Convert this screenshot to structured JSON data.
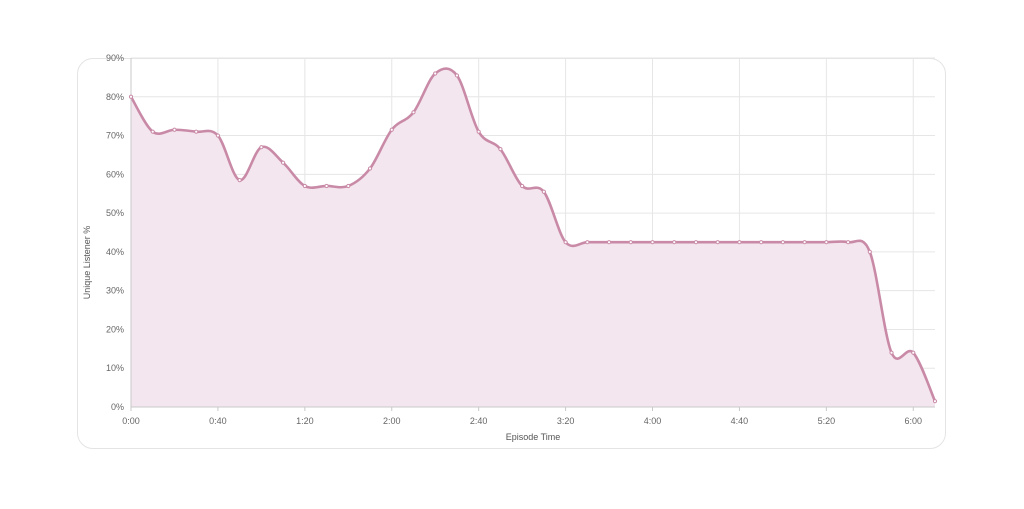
{
  "chart_data": {
    "type": "area",
    "title": "",
    "xlabel": "Episode Time",
    "ylabel": "Unique Listener %",
    "x_unit": "seconds",
    "xlim": [
      0,
      370
    ],
    "ylim": [
      0,
      90
    ],
    "x_ticks": [
      {
        "value": 0,
        "label": "0:00"
      },
      {
        "value": 40,
        "label": "0:40"
      },
      {
        "value": 80,
        "label": "1:20"
      },
      {
        "value": 120,
        "label": "2:00"
      },
      {
        "value": 160,
        "label": "2:40"
      },
      {
        "value": 200,
        "label": "3:20"
      },
      {
        "value": 240,
        "label": "4:00"
      },
      {
        "value": 280,
        "label": "4:40"
      },
      {
        "value": 320,
        "label": "5:20"
      },
      {
        "value": 360,
        "label": "6:00"
      }
    ],
    "y_ticks": [
      {
        "value": 0,
        "label": "0%"
      },
      {
        "value": 10,
        "label": "10%"
      },
      {
        "value": 20,
        "label": "20%"
      },
      {
        "value": 30,
        "label": "30%"
      },
      {
        "value": 40,
        "label": "40%"
      },
      {
        "value": 50,
        "label": "50%"
      },
      {
        "value": 60,
        "label": "60%"
      },
      {
        "value": 70,
        "label": "70%"
      },
      {
        "value": 80,
        "label": "80%"
      },
      {
        "value": 90,
        "label": "90%"
      }
    ],
    "grid": true,
    "legend": "none",
    "colors": {
      "line": "#c98aa7",
      "fill": "#f4e6ee",
      "point": "#c98aa7"
    },
    "series": [
      {
        "x": [
          0,
          10,
          20,
          30,
          40,
          50,
          60,
          70,
          80,
          90,
          100,
          110,
          120,
          130,
          140,
          150,
          160,
          170,
          180,
          190,
          200,
          210,
          220,
          230,
          240,
          250,
          260,
          270,
          280,
          290,
          300,
          310,
          320,
          330,
          340,
          350,
          360,
          370
        ],
        "y": [
          80,
          71,
          71.5,
          71,
          70,
          58.5,
          67,
          63,
          57,
          57,
          57,
          61.5,
          71.5,
          76,
          86,
          85.5,
          71,
          66.5,
          57,
          55.5,
          42.5,
          42.5,
          42.5,
          42.5,
          42.5,
          42.5,
          42.5,
          42.5,
          42.5,
          42.5,
          42.5,
          42.5,
          42.5,
          42.5,
          40,
          14,
          14,
          1.5
        ]
      }
    ]
  }
}
